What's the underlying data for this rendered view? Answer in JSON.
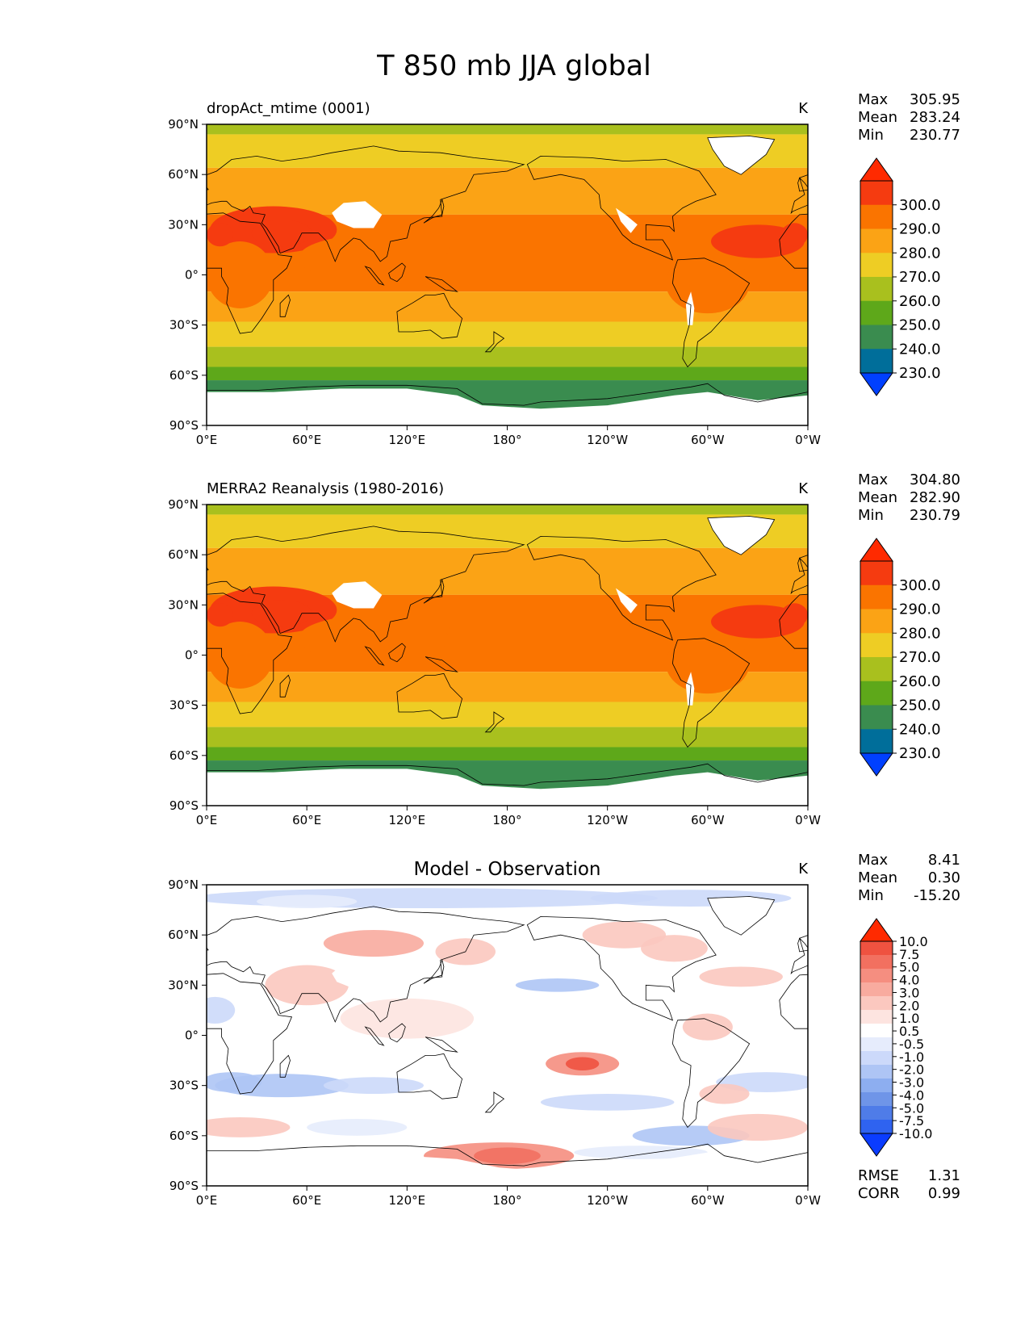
{
  "title": "T 850 mb JJA global",
  "colors": {
    "abs_levels": [
      "#0040ff",
      "#006e9a",
      "#3a8c4f",
      "#5ea81a",
      "#a9c01e",
      "#eecd24",
      "#fba315",
      "#fa7400",
      "#f53b10",
      "#ff2a00"
    ],
    "diff_levels": [
      "#0a3cff",
      "#2f63f0",
      "#4f7ce8",
      "#6f95e8",
      "#8daef0",
      "#aec5f5",
      "#ccd9fa",
      "#e6ecfc",
      "#ffffff",
      "#fde4e0",
      "#fbc8bf",
      "#f8ab9f",
      "#f58e80",
      "#f27060",
      "#ef5240",
      "#ff2a00"
    ],
    "land_missing": "#ffffff",
    "coast": "#000000"
  },
  "panels": [
    {
      "id": "model",
      "left_label": "dropAct_mtime (0001)",
      "center_label": "",
      "units": "K",
      "stats": {
        "max_label": "Max",
        "max": "305.95",
        "mean_label": "Mean",
        "mean": "283.24",
        "min_label": "Min",
        "min": "230.77"
      },
      "colorbar": {
        "ticks": [
          "300.0",
          "290.0",
          "280.0",
          "270.0",
          "260.0",
          "250.0",
          "240.0",
          "230.0"
        ]
      },
      "extra": null
    },
    {
      "id": "obs",
      "left_label": "MERRA2 Reanalysis (1980-2016)",
      "center_label": "",
      "units": "K",
      "stats": {
        "max_label": "Max",
        "max": "304.80",
        "mean_label": "Mean",
        "mean": "282.90",
        "min_label": "Min",
        "min": "230.79"
      },
      "colorbar": {
        "ticks": [
          "300.0",
          "290.0",
          "280.0",
          "270.0",
          "260.0",
          "250.0",
          "240.0",
          "230.0"
        ]
      },
      "extra": null
    },
    {
      "id": "diff",
      "left_label": "",
      "center_label": "Model - Observation",
      "units": "K",
      "stats": {
        "max_label": "Max",
        "max": "8.41",
        "mean_label": "Mean",
        "mean": "0.30",
        "min_label": "Min",
        "min": "-15.20"
      },
      "colorbar": {
        "ticks": [
          "10.0",
          "7.5",
          "5.0",
          "4.0",
          "3.0",
          "2.0",
          "1.0",
          "0.5",
          "-0.5",
          "-1.0",
          "-2.0",
          "-3.0",
          "-4.0",
          "-5.0",
          "-7.5",
          "-10.0"
        ]
      },
      "extra": {
        "rmse_label": "RMSE",
        "rmse": "1.31",
        "corr_label": "CORR",
        "corr": "0.99"
      }
    }
  ],
  "chart_data": [
    {
      "type": "heatmap",
      "title": "dropAct_mtime (0001)",
      "units": "K",
      "projection": "plate carree, global",
      "x_tick_labels": [
        "0°E",
        "60°E",
        "120°E",
        "180°",
        "120°W",
        "60°W",
        "0°W"
      ],
      "y_tick_labels": [
        "90°N",
        "60°N",
        "30°N",
        "0°",
        "30°S",
        "60°S",
        "90°S"
      ],
      "xlim": [
        0,
        360
      ],
      "ylim": [
        -90,
        90
      ],
      "contour_levels": [
        230,
        240,
        250,
        260,
        270,
        280,
        290,
        300
      ],
      "stats": {
        "max": 305.95,
        "mean": 283.24,
        "min": 230.77
      }
    },
    {
      "type": "heatmap",
      "title": "MERRA2 Reanalysis (1980-2016)",
      "units": "K",
      "projection": "plate carree, global",
      "x_tick_labels": [
        "0°E",
        "60°E",
        "120°E",
        "180°",
        "120°W",
        "60°W",
        "0°W"
      ],
      "y_tick_labels": [
        "90°N",
        "60°N",
        "30°N",
        "0°",
        "30°S",
        "60°S",
        "90°S"
      ],
      "xlim": [
        0,
        360
      ],
      "ylim": [
        -90,
        90
      ],
      "contour_levels": [
        230,
        240,
        250,
        260,
        270,
        280,
        290,
        300
      ],
      "stats": {
        "max": 304.8,
        "mean": 282.9,
        "min": 230.79
      }
    },
    {
      "type": "heatmap",
      "title": "Model - Observation",
      "units": "K",
      "projection": "plate carree, global",
      "x_tick_labels": [
        "0°E",
        "60°E",
        "120°E",
        "180°",
        "120°W",
        "60°W",
        "0°W"
      ],
      "y_tick_labels": [
        "90°N",
        "60°N",
        "30°N",
        "0°",
        "30°S",
        "60°S",
        "90°S"
      ],
      "xlim": [
        0,
        360
      ],
      "ylim": [
        -90,
        90
      ],
      "contour_levels": [
        -10,
        -7.5,
        -5,
        -4,
        -3,
        -2,
        -1,
        -0.5,
        0.5,
        1,
        2,
        3,
        4,
        5,
        7.5,
        10
      ],
      "stats": {
        "max": 8.41,
        "mean": 0.3,
        "min": -15.2,
        "rmse": 1.31,
        "corr": 0.99
      }
    }
  ]
}
